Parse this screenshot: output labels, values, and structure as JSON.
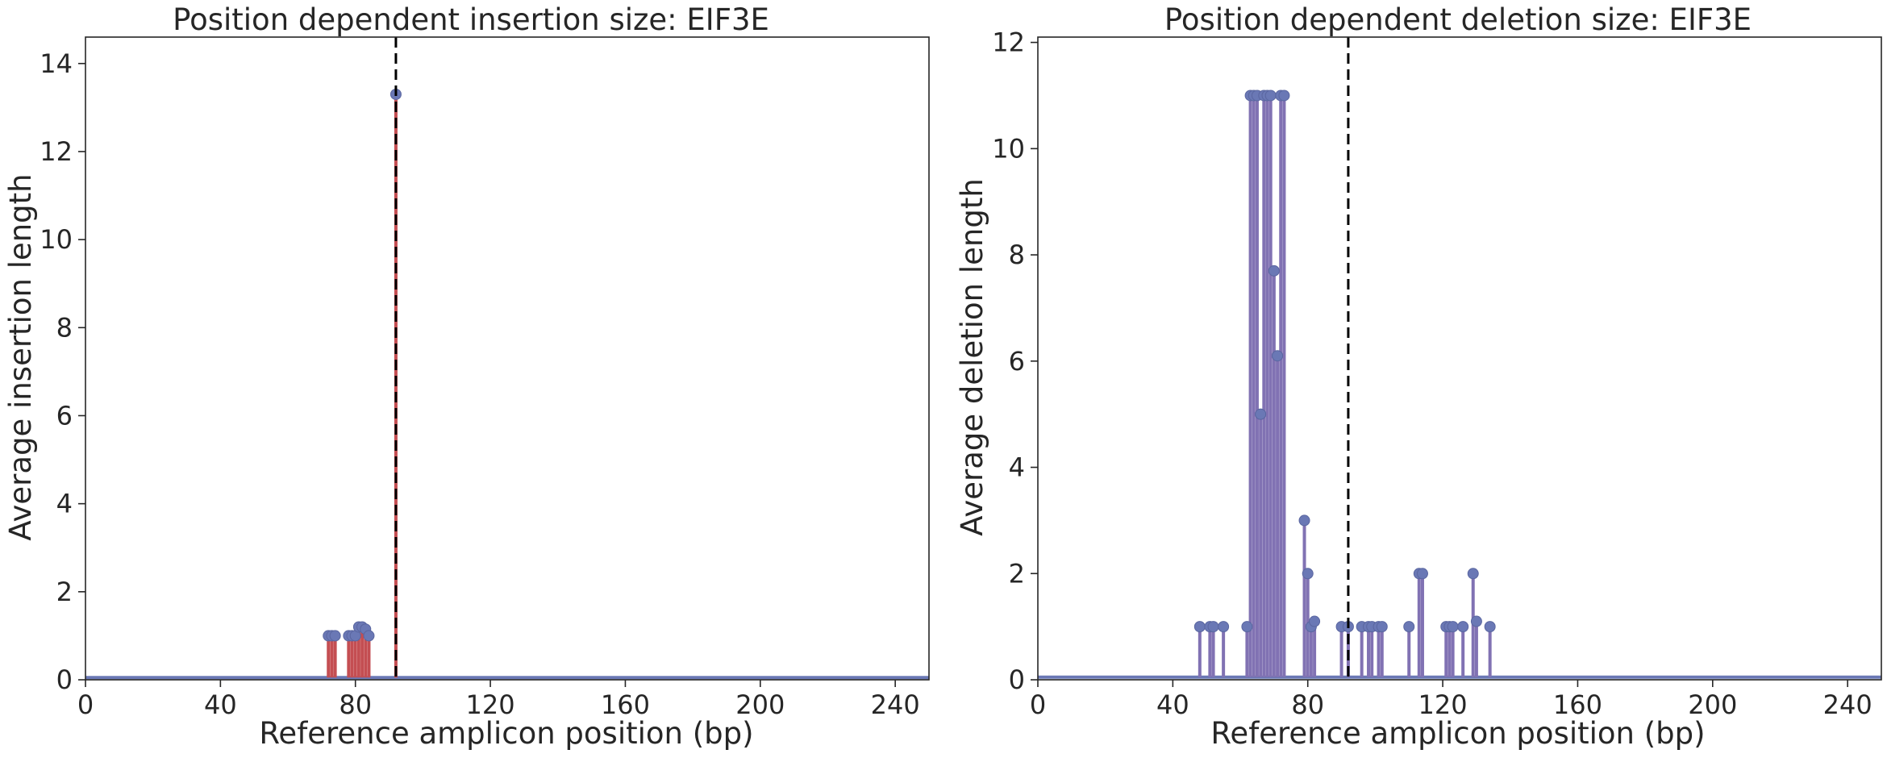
{
  "chart_data": [
    {
      "type": "stem",
      "title": "Position dependent insertion size: EIF3E",
      "xlabel": "Reference amplicon position (bp)",
      "ylabel": "Average insertion length",
      "xlim": [
        0,
        250
      ],
      "ylim": [
        0,
        14.6
      ],
      "xticks": [
        0,
        40,
        80,
        120,
        160,
        200,
        240
      ],
      "yticks": [
        0,
        2,
        4,
        6,
        8,
        10,
        12,
        14
      ],
      "reference_line_x": 92,
      "baseline_y": 0.05,
      "stem_color": "#c44e52",
      "marker_color": "#6a78b5",
      "baseline_color": "#6a78b5",
      "series": [
        {
          "x": [
            72,
            73,
            74,
            78,
            79,
            80,
            81,
            82,
            83,
            84,
            92
          ],
          "values": [
            1.0,
            1.0,
            1.0,
            1.0,
            1.0,
            1.0,
            1.2,
            1.2,
            1.15,
            1.0,
            13.3
          ]
        }
      ]
    },
    {
      "type": "stem",
      "title": "Position dependent deletion size: EIF3E",
      "xlabel": "Reference amplicon position (bp)",
      "ylabel": "Average deletion length",
      "xlim": [
        0,
        250
      ],
      "ylim": [
        0,
        12.1
      ],
      "xticks": [
        0,
        40,
        80,
        120,
        160,
        200,
        240
      ],
      "yticks": [
        0,
        2,
        4,
        6,
        8,
        10,
        12
      ],
      "reference_line_x": 92,
      "baseline_y": 0.05,
      "stem_color": "#8172b3",
      "marker_color": "#6a78b5",
      "baseline_color": "#6a78b5",
      "series": [
        {
          "x": [
            48,
            51,
            52,
            55,
            62,
            63,
            64,
            65,
            66,
            67,
            68,
            69,
            70,
            71,
            72,
            73,
            79,
            80,
            81,
            82,
            90,
            92,
            96,
            98,
            99,
            101,
            102,
            110,
            113,
            114,
            121,
            122,
            123,
            126,
            129,
            130,
            134
          ],
          "values": [
            1.0,
            1.0,
            1.0,
            1.0,
            1.0,
            11.0,
            11.0,
            11.0,
            5.0,
            11.0,
            11.0,
            11.0,
            7.7,
            6.1,
            11.0,
            11.0,
            3.0,
            2.0,
            1.0,
            1.1,
            1.0,
            1.0,
            1.0,
            1.0,
            1.0,
            1.0,
            1.0,
            1.0,
            2.0,
            2.0,
            1.0,
            1.0,
            1.0,
            1.0,
            2.0,
            1.1,
            1.0
          ]
        }
      ]
    }
  ]
}
